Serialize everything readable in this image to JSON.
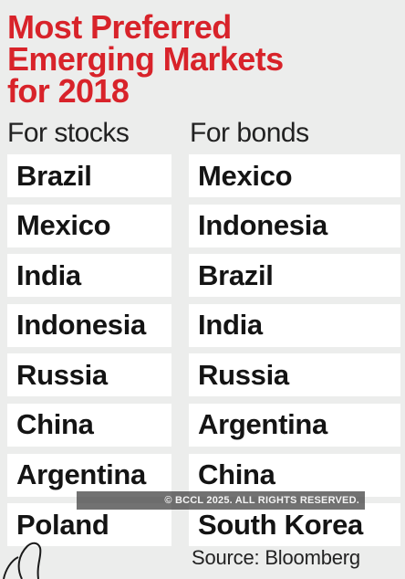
{
  "title": {
    "line1": "Most Preferred",
    "line2": "Emerging Markets",
    "line3": "for 2018"
  },
  "headers": {
    "stocks": "For stocks",
    "bonds": "For bonds"
  },
  "stocks": [
    "Brazil",
    "Mexico",
    "India",
    "Indonesia",
    "Russia",
    "China",
    "Argentina",
    "Poland"
  ],
  "bonds": [
    "Mexico",
    "Indonesia",
    "Brazil",
    "India",
    "Russia",
    "Argentina",
    "China",
    "South Korea"
  ],
  "watermark": "© BCCL 2025. ALL RIGHTS RESERVED.",
  "source": "Source: Bloomberg",
  "colors": {
    "title": "#d8232a",
    "background": "#ecedec",
    "cell": "#ffffff",
    "text": "#141414"
  }
}
